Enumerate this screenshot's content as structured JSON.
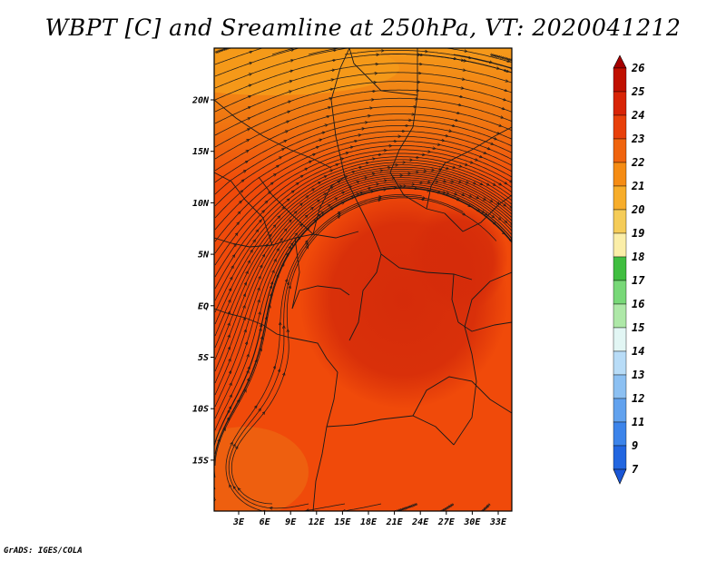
{
  "title": "WBPT [C] and Sreamline at 250hPa, VT: 2020041212",
  "credit": "GrADS: IGES/COLA",
  "map": {
    "lat_labels": [
      "20N",
      "15N",
      "10N",
      "5N",
      "EQ",
      "5S",
      "10S",
      "15S"
    ],
    "lon_labels": [
      "3E",
      "6E",
      "9E",
      "12E",
      "15E",
      "18E",
      "21E",
      "24E",
      "27E",
      "30E",
      "33E"
    ],
    "field_colors": {
      "background": "#f04a0a",
      "warm_core": "#d52c0a",
      "north_cool": "#f07a12",
      "north_edge": "#f59a1a",
      "southwest": "#ee6410"
    },
    "streamline_color": "#1a1a1a",
    "border_color": "#1a1a1a"
  },
  "colorbar": {
    "levels": [
      "26",
      "25",
      "24",
      "23",
      "22",
      "21",
      "20",
      "19",
      "18",
      "17",
      "16",
      "15",
      "14",
      "13",
      "12",
      "11",
      "9",
      "7"
    ],
    "colors": [
      "#a50000",
      "#c01000",
      "#d82406",
      "#e8400a",
      "#f0640e",
      "#f58c14",
      "#f7ad2a",
      "#f5cc58",
      "#fbeea8",
      "#40be40",
      "#78d878",
      "#aee8a8",
      "#e2f6f4",
      "#b8dcf7",
      "#8cc0f2",
      "#62a2ee",
      "#3c84ea",
      "#2266e0",
      "#1a56d6"
    ]
  }
}
